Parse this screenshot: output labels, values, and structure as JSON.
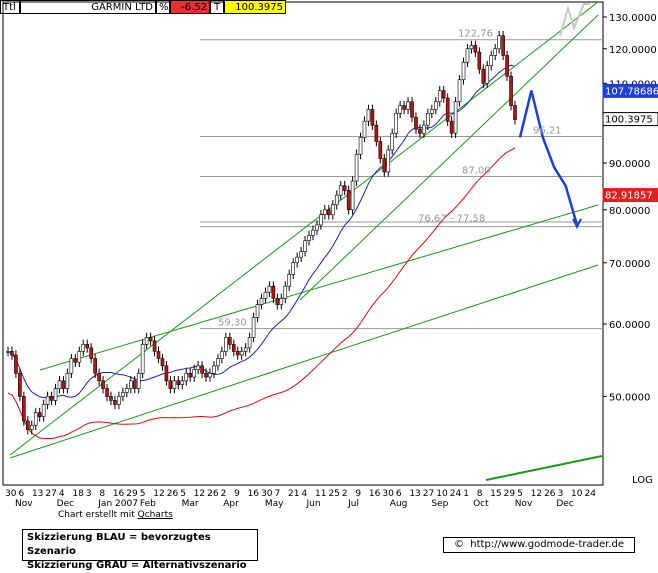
{
  "header": {
    "prefix": "Ttl",
    "name": "GARMIN LTD",
    "pct_symbol": "%",
    "pct_change": "-6.52",
    "t_label": "T",
    "last_price": "100.3975"
  },
  "chart_data": {
    "type": "candlestick",
    "y_scale": "log",
    "scale_label": "LOG",
    "ylim": [
      40,
      135
    ],
    "y_ticks": [
      "130.0000",
      "120.0000",
      "110.0000",
      "100.0000",
      "90.0000",
      "80.0000",
      "70.0000",
      "60.0000",
      "50.0000"
    ],
    "y_tick_values": [
      130,
      120,
      110,
      100,
      90,
      80,
      70,
      60,
      50
    ],
    "x_tick_labels": [
      "30",
      "6",
      "13",
      "27",
      "4",
      "18",
      "3",
      "8",
      "16",
      "29",
      "5",
      "12",
      "26",
      "5",
      "12",
      "26",
      "2",
      "9",
      "16",
      "30",
      "7",
      "21",
      "4",
      "11",
      "25",
      "2",
      "9",
      "16",
      "30",
      "6",
      "13",
      "27",
      "10",
      "24",
      "1",
      "8",
      "15",
      "29",
      "5",
      "12",
      "26",
      "3",
      "10",
      "24"
    ],
    "month_labels": [
      "Nov",
      "Dec",
      "Jan 2007",
      "Feb",
      "Mar",
      "Apr",
      "May",
      "Jun",
      "Jul",
      "Aug",
      "Sep",
      "Oct",
      "Nov",
      "Dec"
    ],
    "price_markers": [
      {
        "value": 107.78686,
        "label": "107.78686",
        "color": "#1f3fd6"
      },
      {
        "value": 100.3975,
        "label": "100.3975",
        "color": "#ffffff"
      },
      {
        "value": 82.91857,
        "label": "82.91857",
        "color": "#e02020"
      }
    ],
    "annotations": [
      {
        "label": "122,76",
        "value": 122.76
      },
      {
        "label": "96,21",
        "value": 96.21
      },
      {
        "label": "87,00",
        "value": 87.0
      },
      {
        "label": "76,67 - 77,58",
        "value": 77.1
      },
      {
        "label": "59,30",
        "value": 59.3
      }
    ],
    "support_levels": [
      122.76,
      96.21,
      87.0,
      77.58,
      76.67,
      59.3
    ],
    "series": [
      {
        "name": "Kurs",
        "kind": "candles"
      },
      {
        "name": "MA blau",
        "kind": "line",
        "color": "#2020c0"
      },
      {
        "name": "MA rot",
        "kind": "line",
        "color": "#d01010"
      }
    ],
    "candles_close": [
      56,
      55.5,
      53,
      50,
      47,
      46,
      46.5,
      48,
      47.5,
      49,
      50,
      49.5,
      51,
      52,
      51,
      53,
      55,
      54.5,
      56,
      57,
      56.5,
      55,
      53,
      52,
      51,
      50,
      49.5,
      49,
      50,
      50.5,
      51,
      52,
      51,
      53,
      57,
      58,
      57.5,
      56,
      55,
      54,
      52,
      51,
      52,
      51.5,
      52,
      53,
      52.5,
      53.5,
      54,
      53,
      52.5,
      53,
      54,
      55,
      56,
      58,
      57,
      56,
      55.5,
      56,
      56.5,
      58,
      61,
      63,
      64,
      65,
      66,
      64,
      63,
      64,
      66,
      68,
      70,
      71,
      72,
      74,
      75,
      76,
      77,
      79,
      80,
      79,
      81,
      83,
      85,
      84,
      80,
      86,
      92,
      96,
      100,
      103,
      99,
      95,
      91,
      88,
      93,
      97,
      102,
      104,
      103,
      105,
      101,
      98,
      97,
      99,
      102,
      103,
      105,
      108,
      106,
      100,
      97,
      105,
      111,
      116,
      120,
      121,
      119,
      114,
      110,
      115,
      118,
      120,
      124,
      118,
      112,
      104,
      100.4
    ],
    "scenario_blue": [
      [
        100,
        96
      ],
      [
        106,
        108
      ],
      [
        112,
        96
      ],
      [
        118,
        89
      ],
      [
        124,
        85
      ],
      [
        130,
        77
      ]
    ]
  },
  "footer": {
    "credit_text": "Chart erstellt mit ",
    "credit_link": "Qcharts",
    "legend_line1": "Skizzierung BLAU = bevorzugtes Szenario",
    "legend_line2": "Skizzierung GRAU = Alternativszenario",
    "site_symbol": "©",
    "site_url": "http://www.godmode-trader.de"
  }
}
